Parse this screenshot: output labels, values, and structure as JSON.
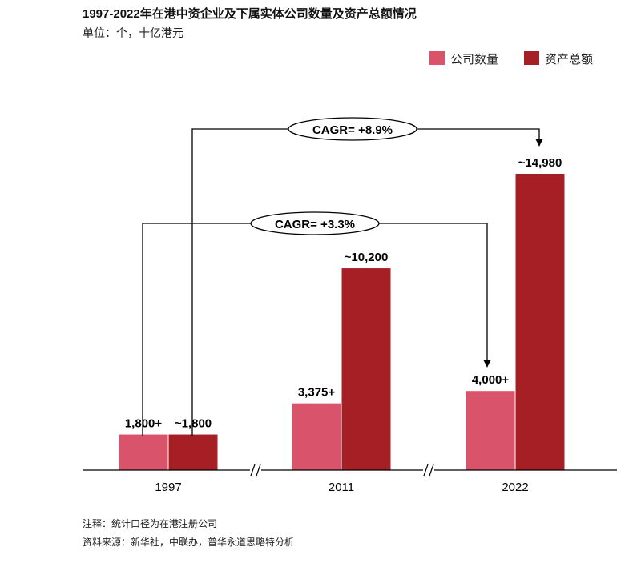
{
  "chart_data": {
    "type": "bar",
    "title": "1997-2022年在港中资企业及下属实体公司数量及资产总额情况",
    "subtitle": "单位：个，十亿港元",
    "categories": [
      "1997",
      "2011",
      "2022"
    ],
    "series": [
      {
        "name": "公司数量",
        "values": [
          1800,
          3375,
          4000
        ],
        "labels": [
          "1,800+",
          "3,375+",
          "4,000+"
        ],
        "color": "#d9546a"
      },
      {
        "name": "资产总额",
        "values": [
          1800,
          10200,
          14980
        ],
        "labels": [
          "~1,800",
          "~10,200",
          "~14,980"
        ],
        "color": "#a51f24"
      }
    ],
    "legend_position": "top-right",
    "axis_break": true,
    "annotations": [
      {
        "text": "CAGR= +8.9%",
        "from": "1997",
        "to": "2022",
        "series": "资产总额"
      },
      {
        "text": "CAGR= +3.3%",
        "from": "1997",
        "to": "2022",
        "series": "公司数量"
      }
    ],
    "ylim": [
      0,
      15500
    ],
    "grid": false
  },
  "footer": {
    "note": "注释：统计口径为在港注册公司",
    "source": "资料来源：新华社，中联办，普华永道思略特分析"
  }
}
